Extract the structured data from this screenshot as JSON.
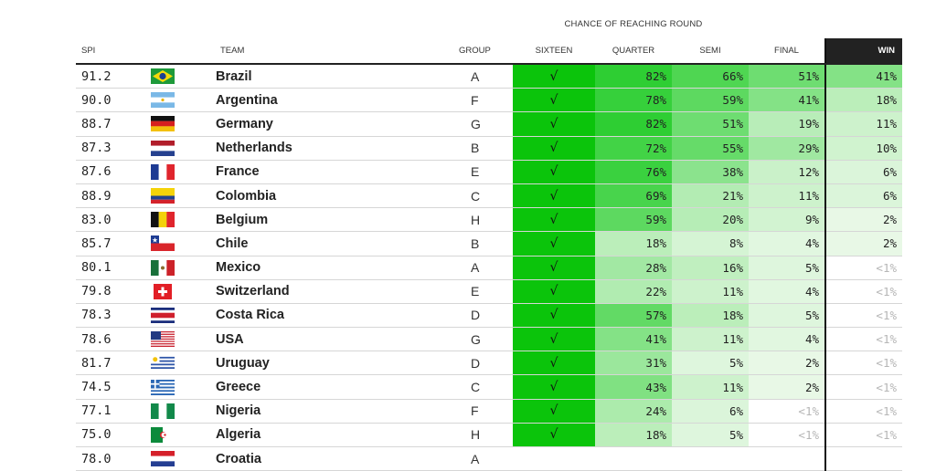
{
  "header": {
    "super_label": "CHANCE OF REACHING ROUND",
    "columns": {
      "spi": "SPI",
      "team": "TEAM",
      "group": "GROUP",
      "r16": "SIXTEEN",
      "qf": "QUARTER",
      "sf": "SEMI",
      "final": "FINAL",
      "win": "WIN"
    }
  },
  "check_mark": "√",
  "chart_data": {
    "type": "table",
    "columns": [
      "SPI",
      "TEAM",
      "GROUP",
      "SIXTEEN",
      "QUARTER",
      "SEMI",
      "FINAL",
      "WIN"
    ],
    "rows": [
      {
        "spi": "91.2",
        "flag": "brazil-flag-icon",
        "team": "Brazil",
        "group": "A",
        "r16": "√",
        "qf": "82%",
        "sf": "66%",
        "final": "51%",
        "win": "41%"
      },
      {
        "spi": "90.0",
        "flag": "argentina-flag-icon",
        "team": "Argentina",
        "group": "F",
        "r16": "√",
        "qf": "78%",
        "sf": "59%",
        "final": "41%",
        "win": "18%"
      },
      {
        "spi": "88.7",
        "flag": "germany-flag-icon",
        "team": "Germany",
        "group": "G",
        "r16": "√",
        "qf": "82%",
        "sf": "51%",
        "final": "19%",
        "win": "11%"
      },
      {
        "spi": "87.3",
        "flag": "netherlands-flag-icon",
        "team": "Netherlands",
        "group": "B",
        "r16": "√",
        "qf": "72%",
        "sf": "55%",
        "final": "29%",
        "win": "10%"
      },
      {
        "spi": "87.6",
        "flag": "france-flag-icon",
        "team": "France",
        "group": "E",
        "r16": "√",
        "qf": "76%",
        "sf": "38%",
        "final": "12%",
        "win": "6%"
      },
      {
        "spi": "88.9",
        "flag": "colombia-flag-icon",
        "team": "Colombia",
        "group": "C",
        "r16": "√",
        "qf": "69%",
        "sf": "21%",
        "final": "11%",
        "win": "6%"
      },
      {
        "spi": "83.0",
        "flag": "belgium-flag-icon",
        "team": "Belgium",
        "group": "H",
        "r16": "√",
        "qf": "59%",
        "sf": "20%",
        "final": "9%",
        "win": "2%"
      },
      {
        "spi": "85.7",
        "flag": "chile-flag-icon",
        "team": "Chile",
        "group": "B",
        "r16": "√",
        "qf": "18%",
        "sf": "8%",
        "final": "4%",
        "win": "2%"
      },
      {
        "spi": "80.1",
        "flag": "mexico-flag-icon",
        "team": "Mexico",
        "group": "A",
        "r16": "√",
        "qf": "28%",
        "sf": "16%",
        "final": "5%",
        "win": "<1%"
      },
      {
        "spi": "79.8",
        "flag": "switzerland-flag-icon",
        "team": "Switzerland",
        "group": "E",
        "r16": "√",
        "qf": "22%",
        "sf": "11%",
        "final": "4%",
        "win": "<1%"
      },
      {
        "spi": "78.3",
        "flag": "costa-rica-flag-icon",
        "team": "Costa Rica",
        "group": "D",
        "r16": "√",
        "qf": "57%",
        "sf": "18%",
        "final": "5%",
        "win": "<1%"
      },
      {
        "spi": "78.6",
        "flag": "usa-flag-icon",
        "team": "USA",
        "group": "G",
        "r16": "√",
        "qf": "41%",
        "sf": "11%",
        "final": "4%",
        "win": "<1%"
      },
      {
        "spi": "81.7",
        "flag": "uruguay-flag-icon",
        "team": "Uruguay",
        "group": "D",
        "r16": "√",
        "qf": "31%",
        "sf": "5%",
        "final": "2%",
        "win": "<1%"
      },
      {
        "spi": "74.5",
        "flag": "greece-flag-icon",
        "team": "Greece",
        "group": "C",
        "r16": "√",
        "qf": "43%",
        "sf": "11%",
        "final": "2%",
        "win": "<1%"
      },
      {
        "spi": "77.1",
        "flag": "nigeria-flag-icon",
        "team": "Nigeria",
        "group": "F",
        "r16": "√",
        "qf": "24%",
        "sf": "6%",
        "final": "<1%",
        "win": "<1%"
      },
      {
        "spi": "75.0",
        "flag": "algeria-flag-icon",
        "team": "Algeria",
        "group": "H",
        "r16": "√",
        "qf": "18%",
        "sf": "5%",
        "final": "<1%",
        "win": "<1%"
      },
      {
        "spi": "78.0",
        "flag": "croatia-flag-icon",
        "team": "Croatia",
        "group": "A",
        "r16": "",
        "qf": "",
        "sf": "",
        "final": "",
        "win": ""
      }
    ]
  },
  "colors": {
    "clinched": "#0bc40b",
    "header_win_bg": "#222222"
  }
}
